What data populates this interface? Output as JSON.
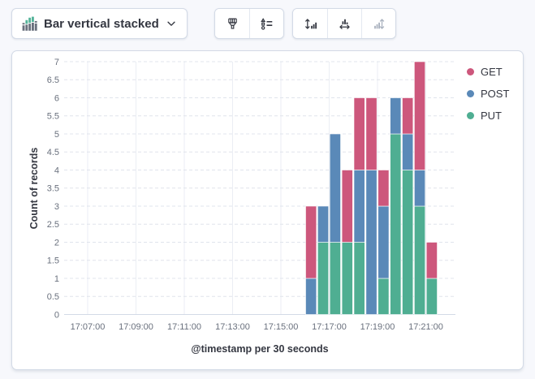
{
  "toolbar": {
    "chart_type_selector": {
      "label": "Bar vertical stacked"
    },
    "buttons": [
      {
        "name": "appearance",
        "icon": "paintbrush-icon",
        "disabled": false
      },
      {
        "name": "legend-settings",
        "icon": "legend-settings-icon",
        "disabled": false
      },
      {
        "name": "left-axis",
        "icon": "axis-left-icon",
        "disabled": false
      },
      {
        "name": "bottom-axis",
        "icon": "axis-bottom-icon",
        "disabled": false
      },
      {
        "name": "right-axis",
        "icon": "axis-right-icon",
        "disabled": true
      }
    ]
  },
  "chart_data": {
    "type": "bar",
    "stacked": true,
    "orientation": "vertical",
    "xlabel": "@timestamp per 30 seconds",
    "ylabel": "Count of records",
    "ylim": [
      0,
      7
    ],
    "y_tick_step": 0.5,
    "grid": {
      "horizontal": "dashed",
      "vertical": "solid"
    },
    "legend_position": "right",
    "bucket_seconds": 30,
    "x_tick_labels": [
      "17:07:00",
      "17:09:00",
      "17:11:00",
      "17:13:00",
      "17:15:00",
      "17:17:00",
      "17:19:00",
      "17:21:00"
    ],
    "x": [
      "17:16:00",
      "17:16:30",
      "17:17:00",
      "17:17:30",
      "17:18:00",
      "17:18:30",
      "17:19:00",
      "17:19:30",
      "17:20:00",
      "17:20:30",
      "17:21:00"
    ],
    "series": [
      {
        "name": "GET",
        "color": "#cd577c",
        "values": [
          2,
          0,
          0,
          2,
          2,
          2,
          1,
          0,
          1,
          3,
          1
        ]
      },
      {
        "name": "POST",
        "color": "#5a89b8",
        "values": [
          1,
          1,
          3,
          0,
          2,
          4,
          2,
          1,
          1,
          1,
          0
        ]
      },
      {
        "name": "PUT",
        "color": "#4fae92",
        "values": [
          0,
          2,
          2,
          2,
          2,
          0,
          1,
          5,
          4,
          3,
          1
        ]
      }
    ],
    "stack_order_bottom_to_top": [
      "PUT",
      "POST",
      "GET"
    ],
    "colors": {
      "axis_text": "#69707d",
      "axis_title": "#343741",
      "gridline": "#e0e4ec",
      "axis_line": "#d3dae6",
      "vertical_gridline": "#ebeef4"
    }
  }
}
